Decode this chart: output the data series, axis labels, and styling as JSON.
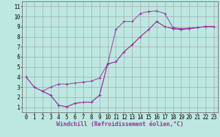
{
  "background_color": "#bde8e2",
  "grid_color": "#999999",
  "line_color": "#993399",
  "xlabel": "Windchill (Refroidissement éolien,°C)",
  "xlabel_fontsize": 6,
  "tick_fontsize": 5.5,
  "xlim": [
    -0.5,
    23.5
  ],
  "ylim": [
    0.5,
    11.5
  ],
  "yticks": [
    1,
    2,
    3,
    4,
    5,
    6,
    7,
    8,
    9,
    10,
    11
  ],
  "xticks": [
    0,
    1,
    2,
    3,
    4,
    5,
    6,
    7,
    8,
    9,
    10,
    11,
    12,
    13,
    14,
    15,
    16,
    17,
    18,
    19,
    20,
    21,
    22,
    23
  ],
  "curve1_x": [
    0,
    1,
    2,
    3,
    4,
    5,
    6,
    7,
    8,
    9,
    10,
    11,
    12,
    13,
    14,
    15,
    16,
    17,
    18,
    19,
    20,
    21,
    22,
    23
  ],
  "curve1_y": [
    4.0,
    3.0,
    2.6,
    2.2,
    1.2,
    1.05,
    1.4,
    1.5,
    1.5,
    2.2,
    5.3,
    8.7,
    9.5,
    9.5,
    10.3,
    10.5,
    10.55,
    10.3,
    8.9,
    8.8,
    8.85,
    8.9,
    9.0,
    9.0
  ],
  "curve2_x": [
    0,
    1,
    2,
    3,
    4,
    5,
    6,
    7,
    8,
    9,
    10,
    11,
    12,
    13,
    14,
    15,
    16,
    17,
    18,
    19,
    20,
    21,
    22,
    23
  ],
  "curve2_y": [
    4.0,
    3.0,
    2.6,
    3.0,
    3.3,
    3.3,
    3.4,
    3.5,
    3.6,
    3.9,
    5.3,
    5.5,
    6.5,
    7.2,
    8.0,
    8.7,
    9.5,
    9.0,
    8.8,
    8.7,
    8.8,
    8.9,
    9.0,
    9.0
  ],
  "curve3_x": [
    2,
    3,
    4,
    5,
    6,
    7,
    8,
    9,
    10,
    11,
    12,
    13,
    14,
    15,
    16,
    17,
    18,
    19,
    20,
    21,
    22,
    23
  ],
  "curve3_y": [
    2.6,
    2.2,
    1.2,
    1.05,
    1.4,
    1.5,
    1.5,
    2.2,
    5.3,
    5.5,
    6.5,
    7.2,
    8.0,
    8.7,
    9.5,
    9.0,
    8.8,
    8.7,
    8.8,
    8.9,
    9.0,
    9.0
  ],
  "xlabel_color": "#993399",
  "spine_color": "#666666"
}
